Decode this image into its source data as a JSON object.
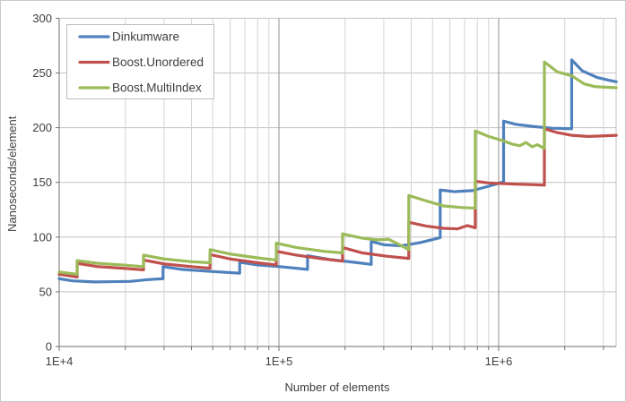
{
  "chart_data": {
    "type": "line",
    "title": "",
    "xlabel": "Number of elements",
    "ylabel": "Nanoseconds/element",
    "x_scale": "log",
    "xlim": [
      10000,
      3430000
    ],
    "ylim": [
      0,
      300
    ],
    "y_tick_step": 50,
    "y_tick_labels": [
      "0",
      "50",
      "100",
      "150",
      "200",
      "250",
      "300"
    ],
    "x_major_ticks": [
      {
        "value": 10000,
        "label": "1E+4"
      },
      {
        "value": 100000,
        "label": "1E+5"
      },
      {
        "value": 1000000,
        "label": "1E+6"
      }
    ],
    "grid": true,
    "legend_position": "top-left",
    "series": [
      {
        "name": "Dinkumware",
        "color": "#4F81BD",
        "points": [
          [
            10000,
            62
          ],
          [
            11500,
            60
          ],
          [
            14500,
            59
          ],
          [
            21000,
            59.5
          ],
          [
            25000,
            61
          ],
          [
            29700,
            62
          ],
          [
            29700,
            73
          ],
          [
            36000,
            70.5
          ],
          [
            50000,
            68.5
          ],
          [
            66300,
            67
          ],
          [
            66300,
            77
          ],
          [
            80000,
            74.5
          ],
          [
            101000,
            73
          ],
          [
            135000,
            70.5
          ],
          [
            135000,
            83
          ],
          [
            170000,
            79.5
          ],
          [
            230000,
            76.5
          ],
          [
            263000,
            75
          ],
          [
            263000,
            96
          ],
          [
            300000,
            93
          ],
          [
            360000,
            92
          ],
          [
            440000,
            95
          ],
          [
            542000,
            99.5
          ],
          [
            542000,
            143
          ],
          [
            630000,
            141.5
          ],
          [
            760000,
            142.5
          ],
          [
            920000,
            147
          ],
          [
            1053000,
            150.5
          ],
          [
            1053000,
            206
          ],
          [
            1200000,
            203
          ],
          [
            1450000,
            201
          ],
          [
            1750000,
            199.5
          ],
          [
            2150000,
            199
          ],
          [
            2150000,
            262
          ],
          [
            2400000,
            252
          ],
          [
            2800000,
            246
          ],
          [
            3150000,
            243.5
          ],
          [
            3430000,
            242
          ]
        ]
      },
      {
        "name": "Boost.Unordered",
        "color": "#C0504D",
        "points": [
          [
            10000,
            66
          ],
          [
            12070,
            63.5
          ],
          [
            12070,
            76
          ],
          [
            15000,
            73
          ],
          [
            19500,
            71.5
          ],
          [
            24200,
            70
          ],
          [
            24200,
            79
          ],
          [
            30000,
            75.5
          ],
          [
            40000,
            73
          ],
          [
            48600,
            71.5
          ],
          [
            48600,
            84
          ],
          [
            60000,
            80
          ],
          [
            80000,
            76.5
          ],
          [
            97300,
            74.5
          ],
          [
            97300,
            87
          ],
          [
            120000,
            83.5
          ],
          [
            160000,
            80
          ],
          [
            194800,
            78
          ],
          [
            194800,
            90.5
          ],
          [
            240000,
            85.5
          ],
          [
            310000,
            82.5
          ],
          [
            390000,
            80.5
          ],
          [
            390000,
            113.5
          ],
          [
            470000,
            110
          ],
          [
            560000,
            108
          ],
          [
            650000,
            107.5
          ],
          [
            720000,
            110.5
          ],
          [
            783000,
            108.5
          ],
          [
            783000,
            151
          ],
          [
            900000,
            149.5
          ],
          [
            1150000,
            148.5
          ],
          [
            1400000,
            148
          ],
          [
            1615000,
            147.5
          ],
          [
            1615000,
            199
          ],
          [
            1850000,
            195.5
          ],
          [
            2150000,
            193
          ],
          [
            2550000,
            192
          ],
          [
            3000000,
            192.5
          ],
          [
            3430000,
            193
          ]
        ]
      },
      {
        "name": "Boost.MultiIndex",
        "color": "#9BBB59",
        "points": [
          [
            10000,
            68
          ],
          [
            12070,
            66
          ],
          [
            12070,
            78.5
          ],
          [
            15000,
            76
          ],
          [
            19500,
            74.5
          ],
          [
            24200,
            73
          ],
          [
            24200,
            83.5
          ],
          [
            30000,
            80
          ],
          [
            40000,
            77.5
          ],
          [
            48600,
            76.5
          ],
          [
            48600,
            88.5
          ],
          [
            60000,
            84.5
          ],
          [
            80000,
            81
          ],
          [
            97300,
            79
          ],
          [
            97300,
            94.5
          ],
          [
            120000,
            90.5
          ],
          [
            160000,
            87
          ],
          [
            194800,
            85.5
          ],
          [
            194800,
            103
          ],
          [
            240000,
            99
          ],
          [
            280000,
            97.5
          ],
          [
            315000,
            98
          ],
          [
            350000,
            93.5
          ],
          [
            390000,
            88.5
          ],
          [
            390000,
            138
          ],
          [
            470000,
            133
          ],
          [
            560000,
            128.5
          ],
          [
            680000,
            127
          ],
          [
            783000,
            126.5
          ],
          [
            783000,
            197
          ],
          [
            900000,
            192
          ],
          [
            1050000,
            188
          ],
          [
            1150000,
            185
          ],
          [
            1250000,
            183.5
          ],
          [
            1330000,
            186.5
          ],
          [
            1420000,
            182.5
          ],
          [
            1500000,
            184.5
          ],
          [
            1615000,
            181
          ],
          [
            1615000,
            260
          ],
          [
            1850000,
            251
          ],
          [
            2150000,
            247.5
          ],
          [
            2450000,
            240
          ],
          [
            2750000,
            237.5
          ],
          [
            3050000,
            237
          ],
          [
            3430000,
            236.5
          ]
        ]
      }
    ]
  },
  "style": {
    "background": "#ffffff",
    "frame_border": "#c9c9c9",
    "grid_minor": "#d4d4d4",
    "grid_major": "#8f8f8f",
    "grid_horizontal": "#c2c2c2",
    "axis_line": "#6f6f6f",
    "text_color": "#3f3f3f",
    "legend_border": "#bdbdbd",
    "series_stroke_width": 3.2
  }
}
